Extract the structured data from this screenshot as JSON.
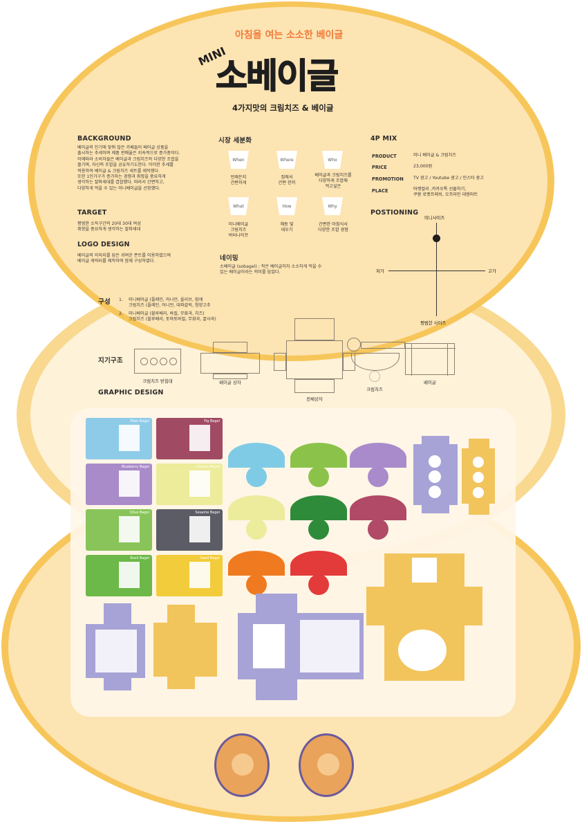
{
  "header": {
    "subtitle": "아침을 여는 소소한 베이글",
    "logo_mini": "MINI",
    "logo_main": "소베이글",
    "tagline": "4가지맛의 크림치즈 & 베이글"
  },
  "background": {
    "title": "BACKGROUND",
    "text": "베이글의 인기에 맞춰 많은 카페들이 베이글 상품을\n출시하는 추세이며 제품 판매율은 지속적으로 증가중이다.\n이에따라 소비자들은 베이글과 크림치즈의 다양한 조합을\n즐기며, 자신의 조합을 공유하기도한다. 이러한 추세를\n적용하여 베이글 & 크림치즈 세트를 제작했다.\n또한 1인가구가 증가하는 경향과 취향을 중요하게\n생각하는 잘파세대를 겹합했다. 따라서 간편하고,\n다양하게 먹을 수 있는 미니베이글을 선정했다."
  },
  "target": {
    "title": "TARGET",
    "text": "평범한 소득구간의 20대 30대 여성\n취향을 중요하게 생각하는 잘파세대"
  },
  "logo_design": {
    "title": "LOGO DESIGN",
    "text": "베이글의 이미지를 담은 귀여운 폰트를 이용하였으며\n베이글 캐릭터를 제작하여 함께 구성하였다."
  },
  "market": {
    "title": "시장 세분화",
    "cups": [
      {
        "label": "When",
        "caption": "언제든지\n간편하게"
      },
      {
        "label": "Where",
        "caption": "집에서\n간편 한끼"
      },
      {
        "label": "Who",
        "caption": "베이글과 크림치즈를\n다양하게 조합해\n먹고싶은"
      },
      {
        "label": "What",
        "caption": "미니베이글\n크림치즈\n버터나이프"
      },
      {
        "label": "How",
        "caption": "해동 및\n데우기"
      },
      {
        "label": "Why",
        "caption": "간편한 아침식사\n다양한 조합 경험"
      }
    ]
  },
  "naming": {
    "title": "네이밍",
    "text": "소베이글 (sobagel) : 작은 베이글이자 소소하게 먹을 수\n있는 베이글이라는 의미를 담았다."
  },
  "mix": {
    "title": "4P MIX",
    "rows": [
      {
        "key": "PRODUCT",
        "value": "미니 베이글 & 크림치즈"
      },
      {
        "key": "PRICE",
        "value": "23,000원"
      },
      {
        "key": "PROMOTION",
        "value": "TV 광고 / Youtube 광고 / 인스타 광고"
      },
      {
        "key": "PLACE",
        "value": "마켓컬리 ,카카오톡 선물하기,\n쿠팡 로켓프레쉬, 오프라인 대형마트"
      }
    ]
  },
  "positioning": {
    "title": "POSTIONING",
    "top": "미니사이즈",
    "bottom": "평범한 사이즈",
    "left": "저가",
    "right": "고가"
  },
  "composition": {
    "title": "구성",
    "items": [
      {
        "num": "1.",
        "text": "미니베이글 (플레인, 어니언, 올리브, 참깨\n크림치즈 (플레인, 어니언, 대파갈릭, 청양고추"
      },
      {
        "num": "2.",
        "text": "미니베이글 (블루베리, 바질, 무화과, 치즈)\n크림치즈 (블루베리, 토마토바질, 무화과, 꿀사과)"
      }
    ]
  },
  "dieline": {
    "title": "지기구조",
    "items": [
      {
        "caption": "크림치즈 받침대"
      },
      {
        "caption": "베이글 상자"
      },
      {
        "caption": "전체상자"
      },
      {
        "caption": "크림치즈"
      },
      {
        "caption": "베이글"
      }
    ]
  },
  "graphic": {
    "title": "GRAPHIC DESIGN",
    "packets": [
      {
        "name": "Plain Bagel",
        "color": "#8ecbe8"
      },
      {
        "name": "Fig Bagel",
        "color": "#a04a63"
      },
      {
        "name": "Blueberry Bagel",
        "color": "#a88bc8"
      },
      {
        "name": "Cheese Bagel",
        "color": "#ecec9a"
      },
      {
        "name": "Olive Bagel",
        "color": "#88c45a"
      },
      {
        "name": "Sesame Bagel",
        "color": "#5c5c66"
      },
      {
        "name": "Basil Bagel",
        "color": "#6cb848"
      },
      {
        "name": "Seed Bagel",
        "color": "#f2cc3a"
      }
    ],
    "cups": [
      {
        "color": "#7fcbe6"
      },
      {
        "color": "#8bc34a"
      },
      {
        "color": "#a98bcb"
      },
      {
        "color": "#ecec9c"
      },
      {
        "color": "#2e8b3a"
      },
      {
        "color": "#b04a66"
      },
      {
        "color": "#f07a1f"
      },
      {
        "color": "#e33a3a"
      }
    ]
  },
  "colors": {
    "bg_main": "#fde4b3",
    "bg_light": "#fef1d6",
    "border": "#f7c65a",
    "lavender": "#a7a3d6",
    "mustard": "#f2c45c"
  }
}
